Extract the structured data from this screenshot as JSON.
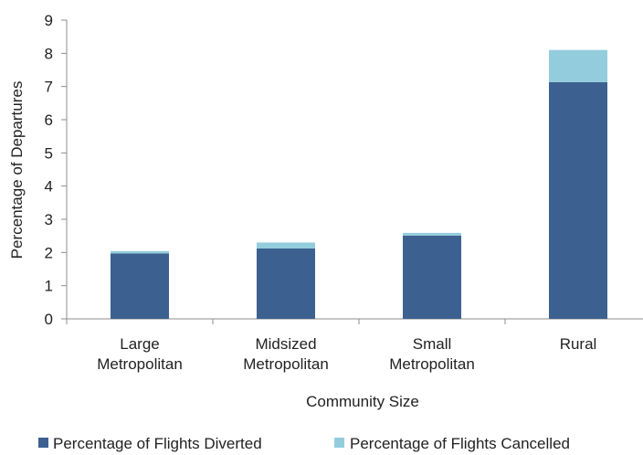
{
  "chart_data": {
    "type": "bar",
    "stacked": true,
    "categories": [
      [
        "Large",
        "Metropolitan"
      ],
      [
        "Midsized",
        "Metropolitan"
      ],
      [
        "Small",
        "Metropolitan"
      ],
      [
        "Rural"
      ]
    ],
    "series": [
      {
        "name": "Percentage of Flights Diverted",
        "values": [
          1.97,
          2.12,
          2.51,
          7.13
        ],
        "color": "#3c6190"
      },
      {
        "name": "Percentage of Flights Cancelled",
        "values": [
          0.07,
          0.18,
          0.08,
          0.97
        ],
        "color": "#93cddd"
      }
    ],
    "xlabel": "Community Size",
    "ylabel": "Percentage of Departures",
    "ylim": [
      0,
      9
    ],
    "yticks": [
      0,
      1,
      2,
      3,
      4,
      5,
      6,
      7,
      8,
      9
    ],
    "grid": false,
    "legend_position": "bottom"
  }
}
